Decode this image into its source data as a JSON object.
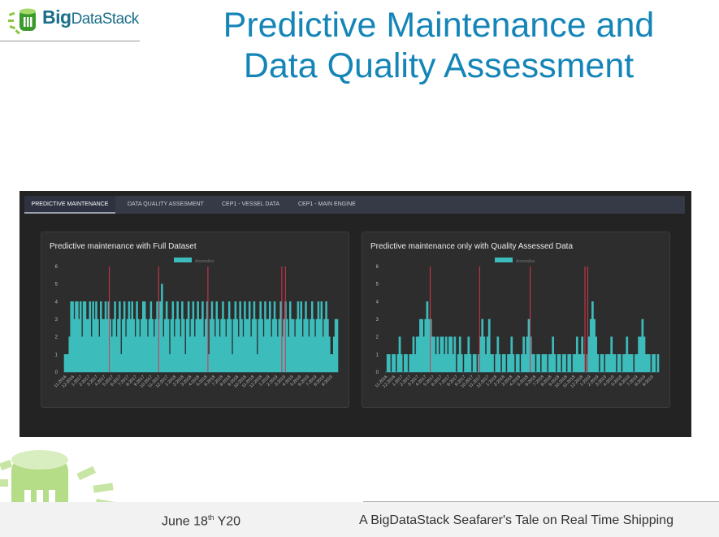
{
  "slide": {
    "logo": {
      "bold": "Big",
      "light": "DataStack"
    },
    "title_line1": "Predictive Maintenance and",
    "title_line2": "Data Quality Assessment",
    "footer": {
      "date_prefix": "June 18",
      "date_sup": "th",
      "date_suffix": " Y20",
      "tagline": "A BigDataStack Seafarer's Tale on Real Time Shipping"
    }
  },
  "tabs": [
    {
      "label": "PREDICTIVE MAINTENANCE",
      "active": true
    },
    {
      "label": "DATA QUALITY ASSESMENT",
      "active": false
    },
    {
      "label": "CEP1 - VESSEL DATA",
      "active": false
    },
    {
      "label": "CEP1 - MAIN ENGINE",
      "active": false
    }
  ],
  "colors": {
    "accent": "#1585b8",
    "series": "#3dbcbc",
    "alert": "#d9364f",
    "panel": "#2d2d2d"
  },
  "chart_data": [
    {
      "type": "area",
      "title": "Predictive maintenance with Full Dataset",
      "legend": {
        "entries": [
          "Anomalies"
        ],
        "position": "top"
      },
      "ylim": [
        0,
        6
      ],
      "yticks": [
        "0",
        "1",
        "2",
        "3",
        "4",
        "5",
        "6"
      ],
      "xticks": [
        "11-2016",
        "12-2016",
        "1-2017",
        "2-2017",
        "3-2017",
        "4-2017",
        "5-2017",
        "6-2017",
        "7-2017",
        "8-2017",
        "9-2017",
        "10-2017",
        "11-2017",
        "12-2017",
        "1-2018",
        "2-2018",
        "3-2018",
        "4-2018",
        "5-2018",
        "6-2018",
        "7-2018",
        "8-2018",
        "9-2018",
        "10-2018",
        "11-2018",
        "12-2018",
        "1-2019",
        "2-2019",
        "3-2019",
        "4-2019",
        "5-2019",
        "6-2019",
        "7-2019",
        "8-2019",
        "9-2019"
      ],
      "series": [
        {
          "name": "Anomalies",
          "values": [
            1,
            1,
            1,
            2,
            4,
            4,
            3,
            4,
            4,
            3,
            4,
            2,
            4,
            4,
            3,
            3,
            4,
            2,
            4,
            3,
            4,
            3,
            2,
            4,
            3,
            3,
            4,
            3,
            4,
            3,
            2,
            3,
            4,
            2,
            3,
            4,
            1,
            3,
            4,
            2,
            3,
            4,
            3,
            4,
            3,
            2,
            4,
            3,
            2,
            3,
            4,
            4,
            3,
            2,
            3,
            4,
            3,
            2,
            3,
            4,
            3,
            4,
            5,
            2,
            3,
            4,
            3,
            1,
            3,
            4,
            2,
            3,
            4,
            3,
            2,
            4,
            3,
            1,
            3,
            4,
            2,
            3,
            4,
            2,
            3,
            4,
            3,
            3,
            4,
            2,
            3,
            4,
            1,
            3,
            4,
            3,
            2,
            4,
            3,
            2,
            3,
            4,
            3,
            2,
            3,
            4,
            3,
            1,
            3,
            4,
            3,
            2,
            4,
            3,
            2,
            4,
            3,
            3,
            4,
            2,
            3,
            4,
            3,
            1,
            3,
            4,
            3,
            2,
            4,
            3,
            3,
            4,
            2,
            3,
            4,
            3,
            2,
            3,
            4,
            2,
            3,
            4,
            3,
            2,
            4,
            3,
            3,
            2,
            3,
            4,
            3,
            4,
            2,
            3,
            4,
            3,
            2,
            3,
            4,
            3,
            2,
            3,
            4,
            3,
            4,
            2,
            3,
            4,
            3,
            2,
            1,
            1,
            2,
            3,
            3
          ]
        }
      ],
      "alert_lines_fraction": [
        0.165,
        0.345,
        0.525,
        0.795,
        0.808
      ]
    },
    {
      "type": "area",
      "title": "Predictive maintenance only with Quality Assessed Data",
      "legend": {
        "entries": [
          "Anomalies"
        ],
        "position": "top"
      },
      "ylim": [
        0,
        6
      ],
      "yticks": [
        "0",
        "1",
        "2",
        "3",
        "4",
        "5",
        "6"
      ],
      "xticks": [
        "11-2016",
        "12-2016",
        "1-2017",
        "2-2017",
        "3-2017",
        "4-2017",
        "5-2017",
        "6-2017",
        "7-2017",
        "8-2017",
        "9-2017",
        "10-2017",
        "11-2017",
        "12-2017",
        "1-2018",
        "2-2018",
        "3-2018",
        "4-2018",
        "5-2018",
        "6-2018",
        "7-2018",
        "8-2018",
        "9-2018",
        "10-2018",
        "11-2018",
        "12-2018",
        "1-2019",
        "2-2019",
        "3-2019",
        "4-2019",
        "5-2019",
        "6-2019",
        "7-2019",
        "8-2019",
        "9-2019"
      ],
      "series": [
        {
          "name": "Anomalies",
          "values": [
            0,
            1,
            1,
            0,
            1,
            1,
            0,
            1,
            2,
            1,
            0,
            1,
            1,
            0,
            1,
            1,
            2,
            1,
            2,
            2,
            3,
            3,
            2,
            3,
            4,
            3,
            3,
            2,
            2,
            1,
            2,
            1,
            2,
            2,
            1,
            2,
            1,
            2,
            2,
            1,
            2,
            0,
            1,
            2,
            1,
            0,
            1,
            1,
            2,
            1,
            0,
            1,
            1,
            0,
            1,
            2,
            3,
            2,
            1,
            2,
            3,
            1,
            1,
            0,
            1,
            2,
            1,
            0,
            1,
            1,
            0,
            1,
            1,
            2,
            1,
            0,
            1,
            1,
            0,
            1,
            2,
            1,
            2,
            3,
            2,
            1,
            1,
            0,
            1,
            1,
            0,
            1,
            1,
            1,
            0,
            1,
            1,
            2,
            1,
            0,
            1,
            1,
            0,
            1,
            1,
            0,
            1,
            1,
            0,
            1,
            1,
            2,
            1,
            1,
            2,
            1,
            0,
            1,
            2,
            3,
            4,
            3,
            2,
            1,
            0,
            1,
            1,
            0,
            1,
            1,
            1,
            2,
            1,
            1,
            0,
            1,
            1,
            0,
            1,
            1,
            2,
            1,
            1,
            1,
            0,
            1,
            1,
            2,
            2,
            3,
            2,
            1,
            1,
            1,
            0,
            1,
            1,
            0,
            1
          ]
        }
      ],
      "alert_lines_fraction": [
        0.165,
        0.345,
        0.53,
        0.73,
        0.74
      ]
    }
  ]
}
